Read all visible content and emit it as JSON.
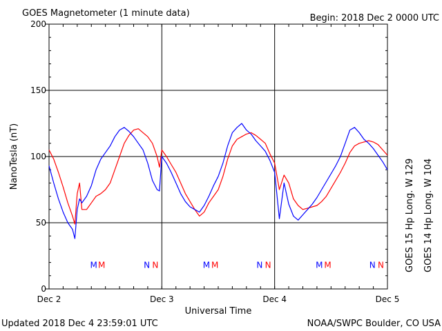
{
  "header": {
    "title": "GOES Magnetometer (1 minute data)",
    "begin": "Begin:  2018 Dec 2 0000 UTC"
  },
  "footer": {
    "updated": "Updated 2018 Dec  4 23:59:01 UTC",
    "credit": "NOAA/SWPC Boulder, CO USA"
  },
  "chart_data": {
    "type": "line",
    "title": "GOES Magnetometer (1 minute data)",
    "xlabel": "Universal Time",
    "ylabel": "NanoTesla (nT)",
    "ylim": [
      0,
      200
    ],
    "yticks": [
      0,
      50,
      100,
      150,
      200
    ],
    "xlim": [
      0,
      72
    ],
    "x_unit": "hours since 2018 Dec 2 0000 UTC",
    "xticks": [
      {
        "x": 0,
        "label": "Dec 2"
      },
      {
        "x": 24,
        "label": "Dec 3"
      },
      {
        "x": 48,
        "label": "Dec 4"
      },
      {
        "x": 72,
        "label": "Dec 5"
      }
    ],
    "grid": true,
    "series": [
      {
        "name": "GOES 15 Hp  Long. W 129",
        "color": "#ff0000",
        "x": [
          0,
          1,
          2,
          3,
          4,
          5,
          5.5,
          6,
          6.5,
          7,
          8,
          9,
          10,
          11,
          12,
          13,
          14,
          15,
          16,
          17,
          18,
          19,
          20,
          21,
          22,
          23,
          23.5,
          24,
          25,
          26,
          27,
          28,
          29,
          30,
          31,
          32,
          33,
          34,
          35,
          36,
          37,
          38,
          39,
          40,
          41,
          42,
          43,
          44,
          45,
          46,
          47,
          48,
          49,
          50,
          51,
          52,
          53,
          54,
          55,
          56,
          57,
          58,
          59,
          60,
          61,
          62,
          63,
          64,
          65,
          66,
          67,
          68,
          69,
          70,
          71,
          72
        ],
        "values": [
          105,
          98,
          88,
          77,
          65,
          55,
          49,
          72,
          80,
          60,
          60,
          65,
          70,
          72,
          75,
          80,
          90,
          100,
          110,
          116,
          120,
          121,
          118,
          115,
          110,
          100,
          92,
          105,
          100,
          94,
          88,
          80,
          72,
          66,
          60,
          55,
          58,
          65,
          70,
          75,
          85,
          98,
          108,
          113,
          115,
          117,
          118,
          116,
          113,
          110,
          102,
          95,
          75,
          86,
          80,
          68,
          63,
          60,
          61,
          62,
          63,
          66,
          70,
          76,
          82,
          88,
          95,
          103,
          108,
          110,
          111,
          112,
          111,
          109,
          105,
          101
        ]
      },
      {
        "name": "GOES 14 Hp  Long. W 104",
        "color": "#0000ff",
        "x": [
          0,
          1,
          2,
          3,
          4,
          5,
          5.5,
          6,
          6.5,
          7,
          8,
          9,
          10,
          11,
          12,
          13,
          14,
          15,
          16,
          17,
          18,
          19,
          20,
          21,
          22,
          23,
          23.5,
          24,
          25,
          26,
          27,
          28,
          29,
          30,
          31,
          32,
          33,
          34,
          35,
          36,
          37,
          38,
          39,
          40,
          41,
          42,
          43,
          44,
          45,
          46,
          47,
          48,
          49,
          50,
          51,
          52,
          53,
          54,
          55,
          56,
          57,
          58,
          59,
          60,
          61,
          62,
          63,
          64,
          65,
          66,
          67,
          68,
          69,
          70,
          71,
          72
        ],
        "values": [
          93,
          80,
          68,
          58,
          50,
          45,
          38,
          60,
          68,
          65,
          70,
          78,
          90,
          98,
          103,
          108,
          115,
          120,
          122,
          119,
          115,
          110,
          105,
          95,
          82,
          75,
          74,
          100,
          95,
          88,
          80,
          72,
          66,
          62,
          60,
          58,
          63,
          70,
          78,
          85,
          95,
          108,
          118,
          122,
          125,
          120,
          117,
          112,
          108,
          104,
          97,
          88,
          53,
          80,
          64,
          55,
          52,
          56,
          60,
          64,
          69,
          75,
          81,
          87,
          93,
          100,
          110,
          120,
          122,
          118,
          113,
          110,
          106,
          101,
          96,
          90
        ]
      }
    ],
    "markers": [
      {
        "x": 9.5,
        "label": "M",
        "color": "#0000ff"
      },
      {
        "x": 11.2,
        "label": "M",
        "color": "#ff0000"
      },
      {
        "x": 20.8,
        "label": "N",
        "color": "#0000ff"
      },
      {
        "x": 22.6,
        "label": "N",
        "color": "#ff0000"
      },
      {
        "x": 33.5,
        "label": "M",
        "color": "#0000ff"
      },
      {
        "x": 35.3,
        "label": "M",
        "color": "#ff0000"
      },
      {
        "x": 44.8,
        "label": "N",
        "color": "#0000ff"
      },
      {
        "x": 46.6,
        "label": "N",
        "color": "#ff0000"
      },
      {
        "x": 57.5,
        "label": "M",
        "color": "#0000ff"
      },
      {
        "x": 59.3,
        "label": "M",
        "color": "#ff0000"
      },
      {
        "x": 68.8,
        "label": "N",
        "color": "#0000ff"
      },
      {
        "x": 70.6,
        "label": "N",
        "color": "#ff0000"
      }
    ],
    "legend_placement": "right, vertical"
  }
}
